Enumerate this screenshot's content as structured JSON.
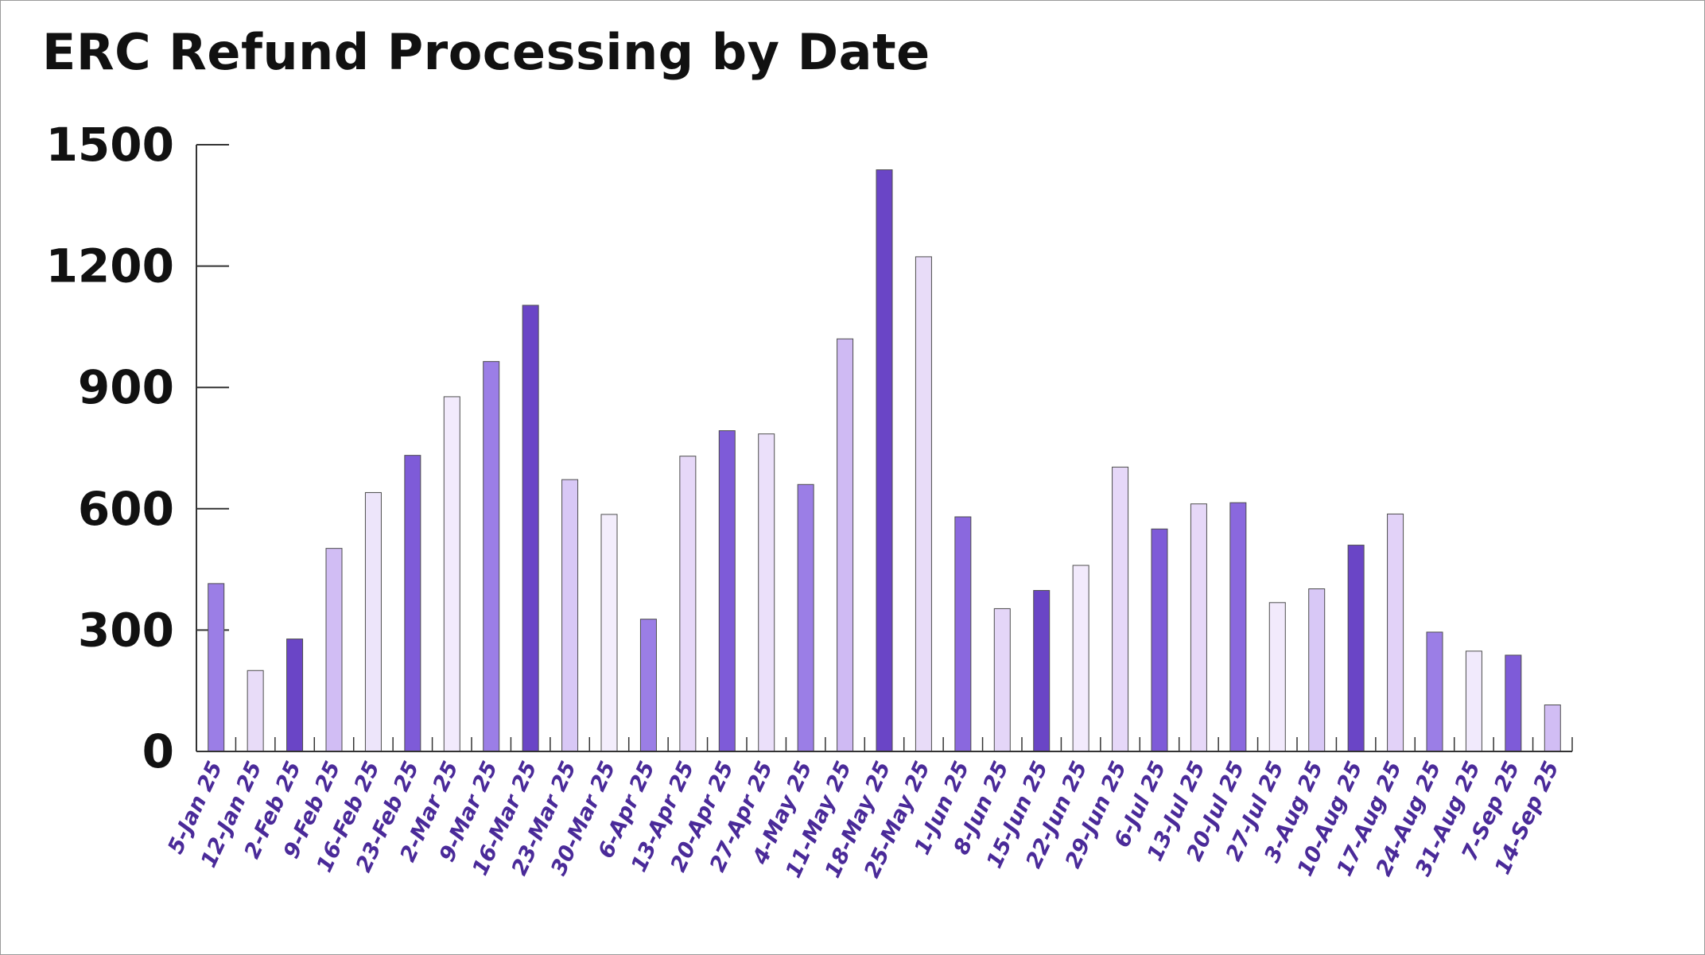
{
  "chart_data": {
    "type": "bar",
    "title": "ERC Refund Processing by Date",
    "xlabel": "",
    "ylabel": "",
    "ylim": [
      0,
      1500
    ],
    "yticks": [
      0,
      300,
      600,
      900,
      1200,
      1500
    ],
    "grid": false,
    "legend": "none",
    "categories": [
      "5-Jan 25",
      "12-Jan 25",
      "2-Feb 25",
      "9-Feb 25",
      "16-Feb 25",
      "23-Feb 25",
      "2-Mar 25",
      "9-Mar 25",
      "16-Mar 25",
      "23-Mar 25",
      "30-Mar 25",
      "6-Apr 25",
      "13-Apr 25",
      "20-Apr 25",
      "27-Apr 25",
      "4-May 25",
      "11-May 25",
      "18-May 25",
      "25-May 25",
      "1-Jun 25",
      "8-Jun 25",
      "15-Jun 25",
      "22-Jun 25",
      "29-Jun 25",
      "6-Jul 25",
      "13-Jul 25",
      "20-Jul 25",
      "27-Jul 25",
      "3-Aug 25",
      "10-Aug 25",
      "17-Aug 25",
      "24-Aug 25",
      "31-Aug 25",
      "7-Sep 25",
      "14-Sep 25"
    ],
    "values": [
      415,
      200,
      278,
      502,
      640,
      732,
      877,
      964,
      1103,
      672,
      586,
      327,
      730,
      793,
      785,
      660,
      1020,
      1438,
      1223,
      580,
      353,
      398,
      460,
      703,
      550,
      612,
      615,
      368,
      402,
      510,
      587,
      295,
      248,
      238,
      115
    ],
    "bar_colors": [
      "#9b7ee6",
      "#e8dcf8",
      "#6a45c6",
      "#d1bdf4",
      "#ede5fa",
      "#7e5bd8",
      "#f2eafc",
      "#9b7ee6",
      "#6a45c6",
      "#d8c8f6",
      "#f3edfc",
      "#9b7ee6",
      "#e6d8f8",
      "#7e5bd8",
      "#ebe0fa",
      "#9b7ee6",
      "#cfbaf3",
      "#6a45c6",
      "#e8dcf8",
      "#8a68de",
      "#e4d6f8",
      "#6a45c6",
      "#f2eafc",
      "#e6d8f8",
      "#7e5bd8",
      "#e6d8f8",
      "#8a68de",
      "#f2eafc",
      "#d8c8f6",
      "#6a45c6",
      "#e2d2f8",
      "#9b7ee6",
      "#f1eafc",
      "#7e5bd8",
      "#d1bdf4"
    ],
    "x_label_color": "#4a2a99",
    "axis_color": "#333333"
  }
}
